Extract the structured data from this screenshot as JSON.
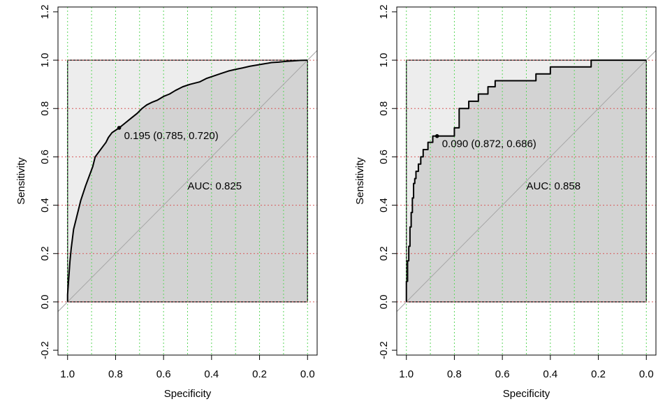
{
  "chart_data": [
    {
      "type": "line",
      "subtype": "roc-curve",
      "xlabel": "Specificity",
      "ylabel": "Sensitivity",
      "xlim": [
        1.04,
        -0.04
      ],
      "ylim": [
        -0.22,
        1.22
      ],
      "x_reversed": true,
      "xticks": [
        1.0,
        0.8,
        0.6,
        0.4,
        0.2,
        0.0
      ],
      "xtick_labels": [
        "1.0",
        "0.8",
        "0.6",
        "0.4",
        "0.2",
        "0.0"
      ],
      "yticks": [
        -0.2,
        0.0,
        0.2,
        0.4,
        0.6,
        0.8,
        1.0,
        1.2
      ],
      "ytick_labels": [
        "-0.2",
        "0.0",
        "0.2",
        "0.4",
        "0.6",
        "0.8",
        "1.0",
        "1.2"
      ],
      "grid_vertical": [
        1.0,
        0.9,
        0.8,
        0.7,
        0.6,
        0.5,
        0.4,
        0.3,
        0.2,
        0.1,
        0.0
      ],
      "grid_horizontal": [
        0.0,
        0.2,
        0.4,
        0.6,
        0.8,
        1.0
      ],
      "auc_label": "AUC: 0.825",
      "auc_label_pos": [
        0.5,
        0.48
      ],
      "threshold_label": "0.195 (0.785, 0.720)",
      "threshold_point": [
        0.785,
        0.72
      ],
      "colors": {
        "curve": "#000000",
        "auc_fill": "#d3d3d3",
        "bg_fill": "#ededed",
        "diagonal": "#a6a6a6",
        "grid_v": "#5bd65b",
        "grid_h": "#d65b5b"
      },
      "series": [
        {
          "x": [
            1.0,
            1.0,
            0.995,
            0.99,
            0.985,
            0.98,
            0.975,
            0.965,
            0.955,
            0.945,
            0.935,
            0.925,
            0.91,
            0.895,
            0.885,
            0.87,
            0.855,
            0.84,
            0.83,
            0.815,
            0.8,
            0.785,
            0.76,
            0.735,
            0.71,
            0.69,
            0.67,
            0.65,
            0.625,
            0.6,
            0.575,
            0.55,
            0.52,
            0.49,
            0.47,
            0.45,
            0.42,
            0.39,
            0.36,
            0.33,
            0.3,
            0.27,
            0.24,
            0.21,
            0.18,
            0.15,
            0.12,
            0.09,
            0.06,
            0.03,
            0.0
          ],
          "y": [
            0.0,
            0.03,
            0.1,
            0.17,
            0.22,
            0.26,
            0.3,
            0.34,
            0.38,
            0.42,
            0.45,
            0.48,
            0.52,
            0.56,
            0.6,
            0.62,
            0.64,
            0.66,
            0.68,
            0.7,
            0.71,
            0.72,
            0.74,
            0.76,
            0.78,
            0.8,
            0.815,
            0.825,
            0.835,
            0.85,
            0.86,
            0.875,
            0.89,
            0.9,
            0.905,
            0.91,
            0.925,
            0.935,
            0.945,
            0.955,
            0.962,
            0.968,
            0.975,
            0.98,
            0.985,
            0.99,
            0.992,
            0.995,
            0.997,
            0.999,
            1.0
          ]
        }
      ]
    },
    {
      "type": "line",
      "subtype": "roc-curve",
      "xlabel": "Specificity",
      "ylabel": "Sensitivity",
      "xlim": [
        1.04,
        -0.04
      ],
      "ylim": [
        -0.22,
        1.22
      ],
      "x_reversed": true,
      "xticks": [
        1.0,
        0.8,
        0.6,
        0.4,
        0.2,
        0.0
      ],
      "xtick_labels": [
        "1.0",
        "0.8",
        "0.6",
        "0.4",
        "0.2",
        "0.0"
      ],
      "yticks": [
        -0.2,
        0.0,
        0.2,
        0.4,
        0.6,
        0.8,
        1.0,
        1.2
      ],
      "ytick_labels": [
        "-0.2",
        "0.0",
        "0.2",
        "0.4",
        "0.6",
        "0.8",
        "1.0",
        "1.2"
      ],
      "grid_vertical": [
        1.0,
        0.9,
        0.8,
        0.7,
        0.6,
        0.5,
        0.4,
        0.3,
        0.2,
        0.1,
        0.0
      ],
      "grid_horizontal": [
        0.0,
        0.2,
        0.4,
        0.6,
        0.8,
        1.0
      ],
      "auc_label": "AUC: 0.858",
      "auc_label_pos": [
        0.5,
        0.48
      ],
      "threshold_label": "0.090 (0.872, 0.686)",
      "threshold_point": [
        0.872,
        0.686
      ],
      "colors": {
        "curve": "#000000",
        "auc_fill": "#d3d3d3",
        "bg_fill": "#ededed",
        "diagonal": "#a6a6a6",
        "grid_v": "#5bd65b",
        "grid_h": "#d65b5b"
      },
      "series": [
        {
          "x": [
            1.0,
            1.0,
            0.995,
            0.995,
            0.99,
            0.99,
            0.985,
            0.985,
            0.98,
            0.98,
            0.975,
            0.975,
            0.97,
            0.97,
            0.965,
            0.965,
            0.96,
            0.96,
            0.95,
            0.95,
            0.94,
            0.94,
            0.93,
            0.93,
            0.91,
            0.91,
            0.89,
            0.89,
            0.872,
            0.872,
            0.8,
            0.8,
            0.78,
            0.78,
            0.74,
            0.74,
            0.7,
            0.7,
            0.66,
            0.66,
            0.63,
            0.63,
            0.6,
            0.6,
            0.46,
            0.46,
            0.4,
            0.4,
            0.23,
            0.23,
            0.0
          ],
          "y": [
            0.0,
            0.085,
            0.085,
            0.17,
            0.17,
            0.23,
            0.23,
            0.31,
            0.31,
            0.37,
            0.37,
            0.43,
            0.43,
            0.49,
            0.49,
            0.51,
            0.51,
            0.54,
            0.54,
            0.57,
            0.57,
            0.6,
            0.6,
            0.63,
            0.63,
            0.66,
            0.66,
            0.686,
            0.686,
            0.686,
            0.686,
            0.72,
            0.72,
            0.8,
            0.8,
            0.83,
            0.83,
            0.86,
            0.86,
            0.89,
            0.89,
            0.915,
            0.915,
            0.915,
            0.915,
            0.943,
            0.943,
            0.972,
            0.972,
            1.0,
            1.0
          ]
        }
      ]
    }
  ]
}
